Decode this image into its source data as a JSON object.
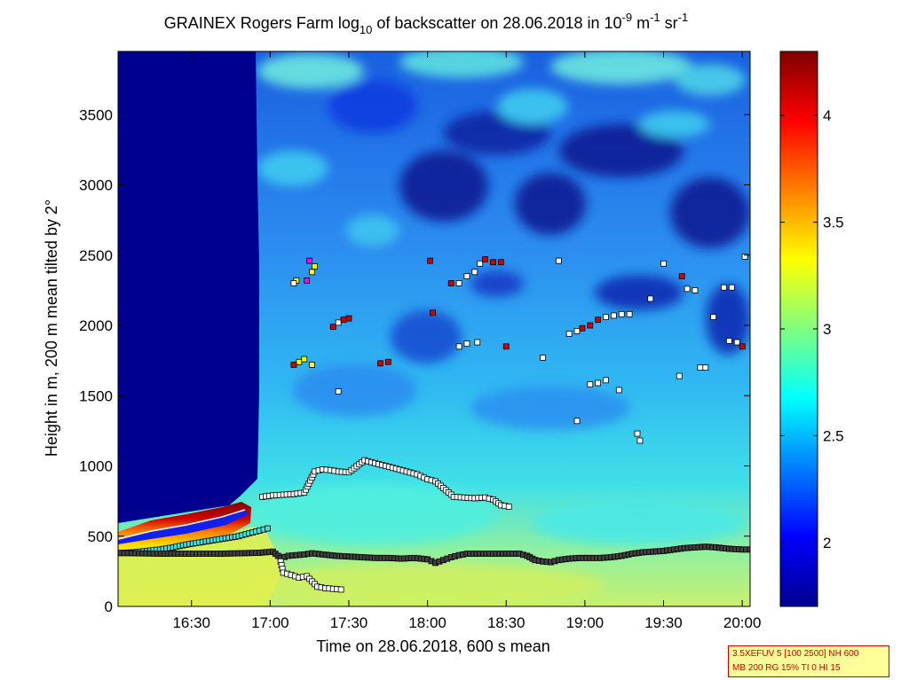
{
  "chart_data": {
    "type": "heatmap",
    "title": {
      "part1": "GRAINEX Rogers Farm log",
      "sub": "10",
      "part2": " of backscatter on 28.06.2018 in 10",
      "sup1": "-9",
      "part3": " m",
      "sup2": "-1",
      "part4": " sr",
      "sup3": "-1"
    },
    "xlabel": "Time on 28.06.2018, 600 s mean",
    "ylabel": "Height in m, 200 m mean tilted by 2°",
    "x_ticks": [
      "16:30",
      "17:00",
      "17:30",
      "18:00",
      "18:30",
      "19:00",
      "19:30",
      "20:00"
    ],
    "x_tick_minutes": [
      990,
      1020,
      1050,
      1080,
      1110,
      1140,
      1170,
      1200
    ],
    "xlim_minutes": [
      962,
      1203
    ],
    "y_ticks": [
      "0",
      "500",
      "1000",
      "1500",
      "2000",
      "2500",
      "3000",
      "3500"
    ],
    "y_tick_values": [
      0,
      500,
      1000,
      1500,
      2000,
      2500,
      3000,
      3500
    ],
    "ylim": [
      0,
      3950
    ],
    "colorbar": {
      "ticks": [
        "2",
        "2.5",
        "3",
        "3.5",
        "4"
      ],
      "tick_values": [
        2,
        2.5,
        3,
        3.5,
        4
      ],
      "range": [
        1.7,
        4.3
      ],
      "colormap": "jet"
    },
    "layer_series": [
      {
        "marker_color": "#40e0e0",
        "points": [
          [
            963,
            380
          ],
          [
            968,
            385
          ],
          [
            973,
            395
          ],
          [
            978,
            405
          ],
          [
            983,
            420
          ],
          [
            988,
            440
          ],
          [
            993,
            455
          ],
          [
            998,
            470
          ],
          [
            1003,
            485
          ],
          [
            1008,
            500
          ],
          [
            1012,
            520
          ],
          [
            1016,
            540
          ],
          [
            1019,
            555
          ]
        ]
      },
      {
        "marker_color": "#404040",
        "points": [
          [
            963,
            380
          ],
          [
            970,
            378
          ],
          [
            977,
            376
          ],
          [
            985,
            375
          ],
          [
            992,
            375
          ],
          [
            1000,
            375
          ],
          [
            1008,
            378
          ],
          [
            1016,
            382
          ],
          [
            1021,
            390
          ],
          [
            1024,
            345
          ],
          [
            1027,
            360
          ],
          [
            1030,
            365
          ],
          [
            1033,
            370
          ],
          [
            1036,
            378
          ],
          [
            1040,
            370
          ],
          [
            1045,
            360
          ],
          [
            1050,
            355
          ],
          [
            1055,
            350
          ],
          [
            1060,
            345
          ],
          [
            1065,
            345
          ],
          [
            1070,
            340
          ],
          [
            1075,
            345
          ],
          [
            1080,
            335
          ],
          [
            1083,
            310
          ],
          [
            1086,
            330
          ],
          [
            1089,
            350
          ],
          [
            1092,
            365
          ],
          [
            1095,
            375
          ],
          [
            1100,
            375
          ],
          [
            1105,
            375
          ],
          [
            1110,
            375
          ],
          [
            1115,
            375
          ],
          [
            1118,
            360
          ],
          [
            1121,
            330
          ],
          [
            1124,
            320
          ],
          [
            1127,
            315
          ],
          [
            1130,
            330
          ],
          [
            1134,
            340
          ],
          [
            1138,
            345
          ],
          [
            1142,
            345
          ],
          [
            1146,
            345
          ],
          [
            1150,
            350
          ],
          [
            1154,
            360
          ],
          [
            1158,
            375
          ],
          [
            1162,
            385
          ],
          [
            1166,
            390
          ],
          [
            1170,
            395
          ],
          [
            1174,
            405
          ],
          [
            1178,
            415
          ],
          [
            1182,
            420
          ],
          [
            1186,
            425
          ],
          [
            1190,
            420
          ],
          [
            1195,
            410
          ],
          [
            1200,
            405
          ],
          [
            1203,
            405
          ]
        ]
      },
      {
        "marker_color": "#ffffff",
        "points": [
          [
            1017,
            780
          ],
          [
            1021,
            790
          ],
          [
            1025,
            795
          ],
          [
            1029,
            800
          ],
          [
            1033,
            810
          ],
          [
            1037,
            960
          ],
          [
            1040,
            975
          ],
          [
            1043,
            970
          ],
          [
            1046,
            960
          ],
          [
            1050,
            955
          ],
          [
            1056,
            1040
          ],
          [
            1060,
            1020
          ],
          [
            1064,
            1000
          ],
          [
            1068,
            980
          ],
          [
            1072,
            960
          ],
          [
            1076,
            940
          ],
          [
            1080,
            905
          ],
          [
            1083,
            890
          ],
          [
            1090,
            780
          ],
          [
            1094,
            775
          ],
          [
            1098,
            770
          ],
          [
            1102,
            775
          ],
          [
            1105,
            760
          ],
          [
            1108,
            720
          ],
          [
            1111,
            710
          ]
        ]
      },
      {
        "marker_color": "#ffffff",
        "points": [
          [
            1024,
            320
          ],
          [
            1025,
            240
          ],
          [
            1028,
            225
          ],
          [
            1031,
            205
          ],
          [
            1034,
            215
          ],
          [
            1038,
            140
          ],
          [
            1041,
            130
          ],
          [
            1044,
            125
          ],
          [
            1047,
            120
          ]
        ]
      }
    ],
    "scatter_points": [
      {
        "x": 1035,
        "y": 2460,
        "c": "#ff00ff"
      },
      {
        "x": 1036,
        "y": 2380,
        "c": "#ffff00"
      },
      {
        "x": 1037,
        "y": 2420,
        "c": "#ffff00"
      },
      {
        "x": 1034,
        "y": 2320,
        "c": "#ff00ff"
      },
      {
        "x": 1030,
        "y": 2320,
        "c": "#ffff00"
      },
      {
        "x": 1029,
        "y": 2300,
        "c": "#ffffff"
      },
      {
        "x": 1031,
        "y": 1740,
        "c": "#ffff00"
      },
      {
        "x": 1033,
        "y": 1760,
        "c": "#ffff00"
      },
      {
        "x": 1036,
        "y": 1720,
        "c": "#ffff00"
      },
      {
        "x": 1029,
        "y": 1720,
        "c": "#cc0000"
      },
      {
        "x": 1044,
        "y": 1990,
        "c": "#cc0000"
      },
      {
        "x": 1046,
        "y": 2020,
        "c": "#ffffff"
      },
      {
        "x": 1048,
        "y": 2040,
        "c": "#cc0000"
      },
      {
        "x": 1050,
        "y": 2050,
        "c": "#cc0000"
      },
      {
        "x": 1046,
        "y": 1530,
        "c": "#ffffff"
      },
      {
        "x": 1062,
        "y": 1730,
        "c": "#cc0000"
      },
      {
        "x": 1065,
        "y": 1740,
        "c": "#cc0000"
      },
      {
        "x": 1081,
        "y": 2460,
        "c": "#cc0000"
      },
      {
        "x": 1082,
        "y": 2090,
        "c": "#cc0000"
      },
      {
        "x": 1089,
        "y": 2300,
        "c": "#cc0000"
      },
      {
        "x": 1092,
        "y": 2300,
        "c": "#ffffff"
      },
      {
        "x": 1095,
        "y": 2350,
        "c": "#ffffff"
      },
      {
        "x": 1098,
        "y": 2380,
        "c": "#ffffff"
      },
      {
        "x": 1100,
        "y": 2440,
        "c": "#ffffff"
      },
      {
        "x": 1102,
        "y": 2470,
        "c": "#cc0000"
      },
      {
        "x": 1105,
        "y": 2450,
        "c": "#cc0000"
      },
      {
        "x": 1108,
        "y": 2450,
        "c": "#cc0000"
      },
      {
        "x": 1092,
        "y": 1850,
        "c": "#ffffff"
      },
      {
        "x": 1095,
        "y": 1870,
        "c": "#ffffff"
      },
      {
        "x": 1099,
        "y": 1880,
        "c": "#ffffff"
      },
      {
        "x": 1110,
        "y": 1850,
        "c": "#cc0000"
      },
      {
        "x": 1124,
        "y": 1770,
        "c": "#ffffff"
      },
      {
        "x": 1130,
        "y": 2460,
        "c": "#ffffff"
      },
      {
        "x": 1134,
        "y": 1940,
        "c": "#ffffff"
      },
      {
        "x": 1137,
        "y": 1960,
        "c": "#ffffff"
      },
      {
        "x": 1139,
        "y": 1980,
        "c": "#cc0000"
      },
      {
        "x": 1142,
        "y": 2000,
        "c": "#cc0000"
      },
      {
        "x": 1145,
        "y": 2040,
        "c": "#cc0000"
      },
      {
        "x": 1148,
        "y": 2060,
        "c": "#ffffff"
      },
      {
        "x": 1151,
        "y": 2070,
        "c": "#ffffff"
      },
      {
        "x": 1154,
        "y": 2080,
        "c": "#ffffff"
      },
      {
        "x": 1157,
        "y": 2080,
        "c": "#ffffff"
      },
      {
        "x": 1142,
        "y": 1580,
        "c": "#ffffff"
      },
      {
        "x": 1145,
        "y": 1590,
        "c": "#ffffff"
      },
      {
        "x": 1148,
        "y": 1610,
        "c": "#ffffff"
      },
      {
        "x": 1137,
        "y": 1320,
        "c": "#ffffff"
      },
      {
        "x": 1153,
        "y": 1540,
        "c": "#ffffff"
      },
      {
        "x": 1160,
        "y": 1230,
        "c": "#ffffff"
      },
      {
        "x": 1161,
        "y": 1180,
        "c": "#ffffff"
      },
      {
        "x": 1165,
        "y": 2190,
        "c": "#ffffff"
      },
      {
        "x": 1170,
        "y": 2440,
        "c": "#ffffff"
      },
      {
        "x": 1177,
        "y": 2350,
        "c": "#cc0000"
      },
      {
        "x": 1179,
        "y": 2260,
        "c": "#ffffff"
      },
      {
        "x": 1182,
        "y": 2250,
        "c": "#ffffff"
      },
      {
        "x": 1176,
        "y": 1640,
        "c": "#ffffff"
      },
      {
        "x": 1184,
        "y": 1700,
        "c": "#ffffff"
      },
      {
        "x": 1186,
        "y": 1700,
        "c": "#ffffff"
      },
      {
        "x": 1189,
        "y": 2060,
        "c": "#ffffff"
      },
      {
        "x": 1193,
        "y": 2270,
        "c": "#ffffff"
      },
      {
        "x": 1196,
        "y": 2270,
        "c": "#ffffff"
      },
      {
        "x": 1195,
        "y": 1890,
        "c": "#ffffff"
      },
      {
        "x": 1198,
        "y": 1880,
        "c": "#ffffff"
      },
      {
        "x": 1200,
        "y": 1850,
        "c": "#cc0000"
      },
      {
        "x": 1201,
        "y": 2490,
        "c": "#ffffff"
      }
    ]
  },
  "info_box": {
    "line1": "3.5XEFUV 5 [100 2500] NH 600",
    "line2": "MB 200 RG 15% TI 0 HI 15"
  }
}
